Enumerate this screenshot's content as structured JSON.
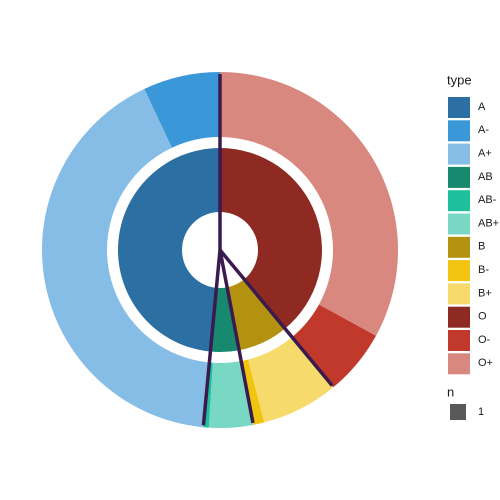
{
  "chart_data": {
    "type": "sunburst",
    "inner": {
      "categories": [
        "A",
        "AB",
        "B",
        "O"
      ],
      "values": [
        48.5,
        4.5,
        8,
        39
      ],
      "colors": [
        "#2c6fa3",
        "#16896f",
        "#b3920f",
        "#8e2a22"
      ]
    },
    "outer": {
      "categories": [
        "A-",
        "A+",
        "AB-",
        "AB+",
        "B-",
        "B+",
        "O-",
        "O+"
      ],
      "values": [
        7,
        41.5,
        0.5,
        4,
        1,
        7,
        6,
        33
      ],
      "colors": [
        "#3a98d8",
        "#86bde6",
        "#1dbf9c",
        "#79d8c4",
        "#f1c40f",
        "#f6da6c",
        "#c0392b",
        "#d98880"
      ]
    },
    "legend_title": "type",
    "size_legend": {
      "title": "n",
      "entries": [
        1
      ]
    },
    "divider_color": "#3b1a4f"
  }
}
